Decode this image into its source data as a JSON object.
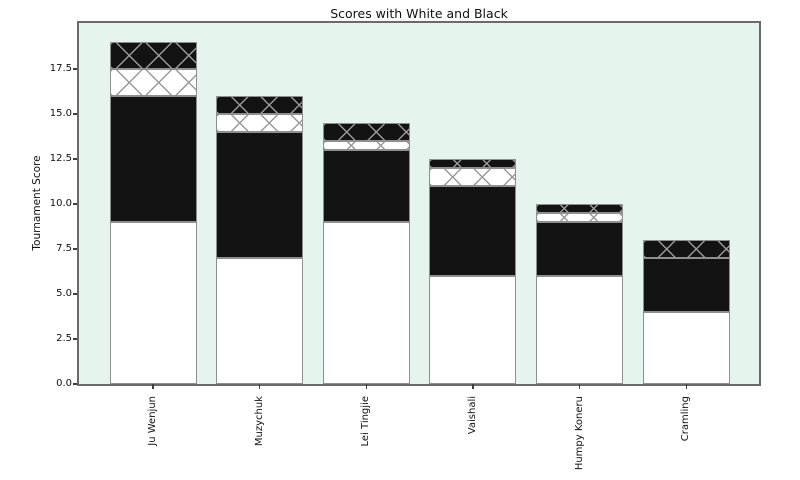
{
  "chart_data": {
    "type": "bar",
    "stacked": true,
    "title": "Scores with White and Black",
    "xlabel": "",
    "ylabel": "Tournament Score",
    "categories": [
      "Ju Wenjun",
      "Muzychuk",
      "Lei Tingjie",
      "Vaishali",
      "Humpy Koneru",
      "Cramling"
    ],
    "series": [
      {
        "name": "white-solid",
        "fill": "#ffffff",
        "hatched": false,
        "values": [
          9.0,
          7.0,
          9.0,
          6.0,
          6.0,
          4.0
        ]
      },
      {
        "name": "black-solid",
        "fill": "#131313",
        "hatched": false,
        "values": [
          7.0,
          7.0,
          4.0,
          5.0,
          3.0,
          3.0
        ]
      },
      {
        "name": "white-hatched",
        "fill": "#ffffff",
        "hatched": true,
        "values": [
          1.5,
          1.0,
          0.5,
          1.0,
          0.5,
          0.0
        ]
      },
      {
        "name": "black-hatched",
        "fill": "#131313",
        "hatched": true,
        "values": [
          1.5,
          1.0,
          1.0,
          0.5,
          0.5,
          1.0
        ]
      }
    ],
    "totals": [
      19.0,
      16.0,
      14.5,
      12.5,
      10.0,
      8.0
    ],
    "yticks": [
      0,
      2.5,
      5,
      7.5,
      10,
      12.5,
      15,
      17.5
    ],
    "ytick_labels": [
      "0.0",
      "2.5",
      "5.0",
      "7.5",
      "10.0",
      "12.5",
      "15.0",
      "17.5"
    ],
    "ylim": [
      0,
      20.06
    ],
    "grid": false,
    "legend": null,
    "hatch_style": "x-crosshatch",
    "colors": {
      "plot_background": "#e5f4ed",
      "figure_background": "#ffffff",
      "bar_edge": "#8f8f8f",
      "hatch_line": "#999999",
      "spine": "#6a6a6a",
      "text": "#111111"
    }
  }
}
